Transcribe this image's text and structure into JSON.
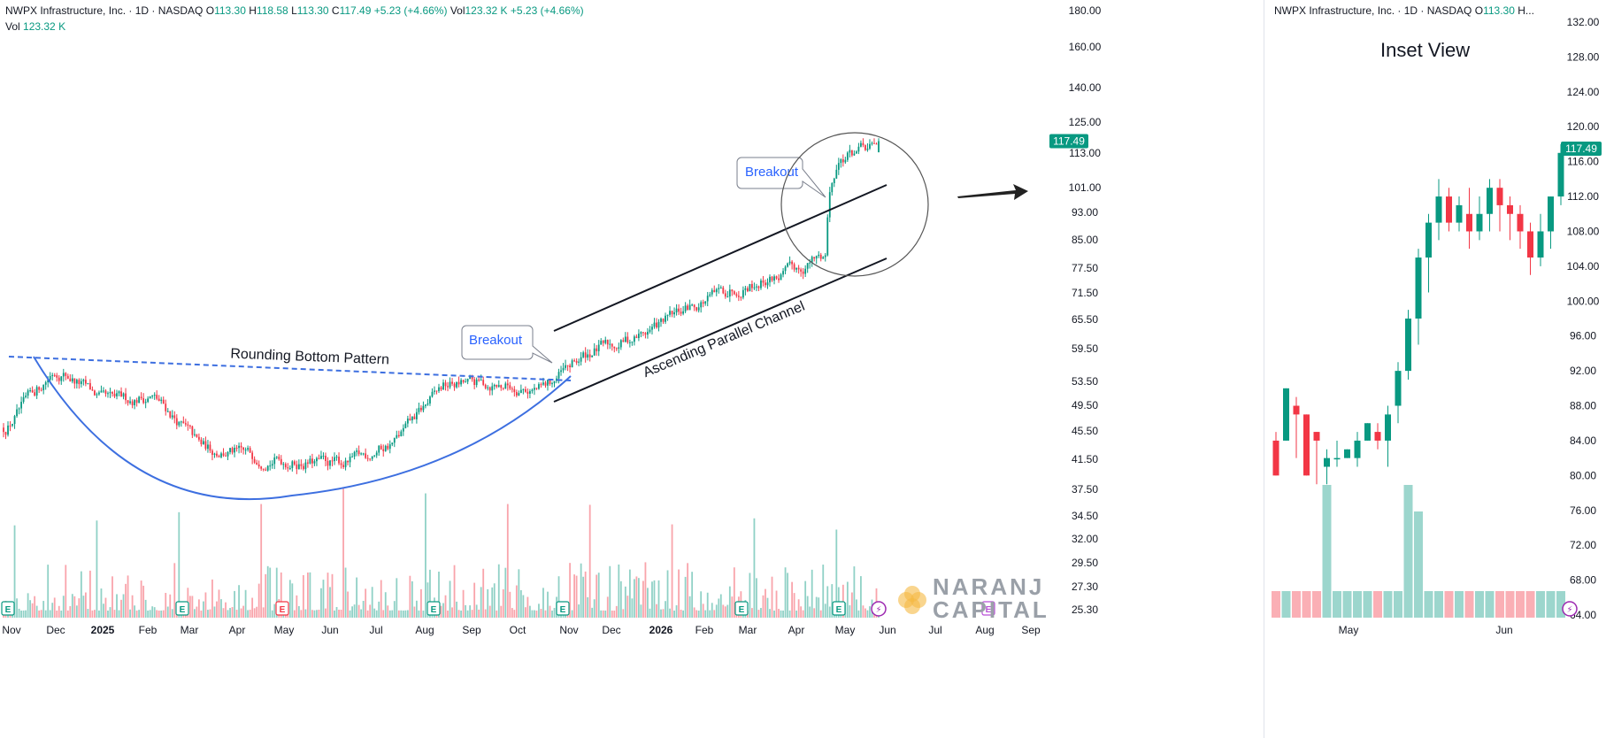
{
  "main": {
    "header": {
      "symbol": "NWPX Infrastructure, Inc. · 1D · NASDAQ",
      "o_label": "O",
      "o": "113.30",
      "h_label": "H",
      "h": "118.58",
      "l_label": "L",
      "l": "113.30",
      "c_label": "C",
      "c": "117.49",
      "chg": "+5.23 (+4.66%)",
      "vol_label": "Vol",
      "vol": "123.32 K",
      "vol_chg": "+5.23 (+4.66%)",
      "vol2_label": "Vol",
      "vol2": "123.32 K"
    },
    "y_ticks": [
      "180.00",
      "160.00",
      "140.00",
      "125.00",
      "113.00",
      "101.00",
      "93.00",
      "85.00",
      "77.50",
      "71.50",
      "65.50",
      "59.50",
      "53.50",
      "49.50",
      "45.50",
      "41.50",
      "37.50",
      "34.50",
      "32.00",
      "29.50",
      "27.30",
      "25.30"
    ],
    "x_ticks": [
      {
        "label": "Nov",
        "bold": false
      },
      {
        "label": "Dec",
        "bold": false
      },
      {
        "label": "2025",
        "bold": true
      },
      {
        "label": "Feb",
        "bold": false
      },
      {
        "label": "Mar",
        "bold": false
      },
      {
        "label": "Apr",
        "bold": false
      },
      {
        "label": "May",
        "bold": false
      },
      {
        "label": "Jun",
        "bold": false
      },
      {
        "label": "Jul",
        "bold": false
      },
      {
        "label": "Aug",
        "bold": false
      },
      {
        "label": "Sep",
        "bold": false
      },
      {
        "label": "Oct",
        "bold": false
      },
      {
        "label": "Nov",
        "bold": false
      },
      {
        "label": "Dec",
        "bold": false
      },
      {
        "label": "2026",
        "bold": true
      },
      {
        "label": "Feb",
        "bold": false
      },
      {
        "label": "Mar",
        "bold": false
      },
      {
        "label": "Apr",
        "bold": false
      },
      {
        "label": "May",
        "bold": false
      },
      {
        "label": "Jun",
        "bold": false
      },
      {
        "label": "Jul",
        "bold": false
      },
      {
        "label": "Aug",
        "bold": false
      },
      {
        "label": "Sep",
        "bold": false
      }
    ],
    "last_price": "117.49",
    "annotations": {
      "rounding": "Rounding Bottom Pattern",
      "breakout1": "Breakout",
      "breakout2": "Breakout",
      "channel": "Ascending Parallel Channel"
    },
    "event_markers": [
      "E",
      "E",
      "E",
      "E",
      "E",
      "E",
      "E",
      "E"
    ],
    "logo": {
      "line1": "NARANJ",
      "line2": "CAPITAL"
    }
  },
  "inset": {
    "header": {
      "symbol": "NWPX Infrastructure, Inc. · 1D · NASDAQ",
      "o_label": "O",
      "o": "113.30",
      "more": "H..."
    },
    "title": "Inset View",
    "y_ticks": [
      "132.00",
      "128.00",
      "124.00",
      "120.00",
      "116.00",
      "112.00",
      "108.00",
      "104.00",
      "100.00",
      "96.00",
      "92.00",
      "88.00",
      "84.00",
      "80.00",
      "76.00",
      "72.00",
      "68.00",
      "64.00"
    ],
    "x_ticks": [
      "May",
      "Jun"
    ],
    "last_price": "117.49"
  },
  "colors": {
    "up": "#089981",
    "down": "#f23645",
    "blue": "#2962ff",
    "pattern": "#3d6fe0",
    "logo": "#f5b942"
  },
  "chart_data": {
    "type": "candlestick",
    "symbol": "NWPX",
    "last": {
      "open": 113.3,
      "high": 118.58,
      "low": 113.3,
      "close": 117.49,
      "change": 5.23,
      "change_pct": 4.66
    },
    "volume_last": "123.32 K",
    "approx_closes": [
      {
        "date": "Nov 2024",
        "close": 46
      },
      {
        "date": "Dec 2024",
        "close": 56
      },
      {
        "date": "Jan 2025",
        "close": 50
      },
      {
        "date": "Feb 2025",
        "close": 51
      },
      {
        "date": "Mar 2025",
        "close": 43
      },
      {
        "date": "Apr 2025",
        "close": 42
      },
      {
        "date": "May 2025",
        "close": 41
      },
      {
        "date": "Jun 2025",
        "close": 41
      },
      {
        "date": "Jul 2025",
        "close": 44
      },
      {
        "date": "Aug 2025",
        "close": 53
      },
      {
        "date": "Sep 2025",
        "close": 53
      },
      {
        "date": "Oct 2025",
        "close": 52
      },
      {
        "date": "Nov 2025",
        "close": 59
      },
      {
        "date": "Dec 2025",
        "close": 62
      },
      {
        "date": "Jan 2026",
        "close": 68
      },
      {
        "date": "Feb 2026",
        "close": 73
      },
      {
        "date": "Mar 2026",
        "close": 76
      },
      {
        "date": "Apr 2026",
        "close": 82
      },
      {
        "date": "May 2026",
        "close": 113
      }
    ]
  }
}
